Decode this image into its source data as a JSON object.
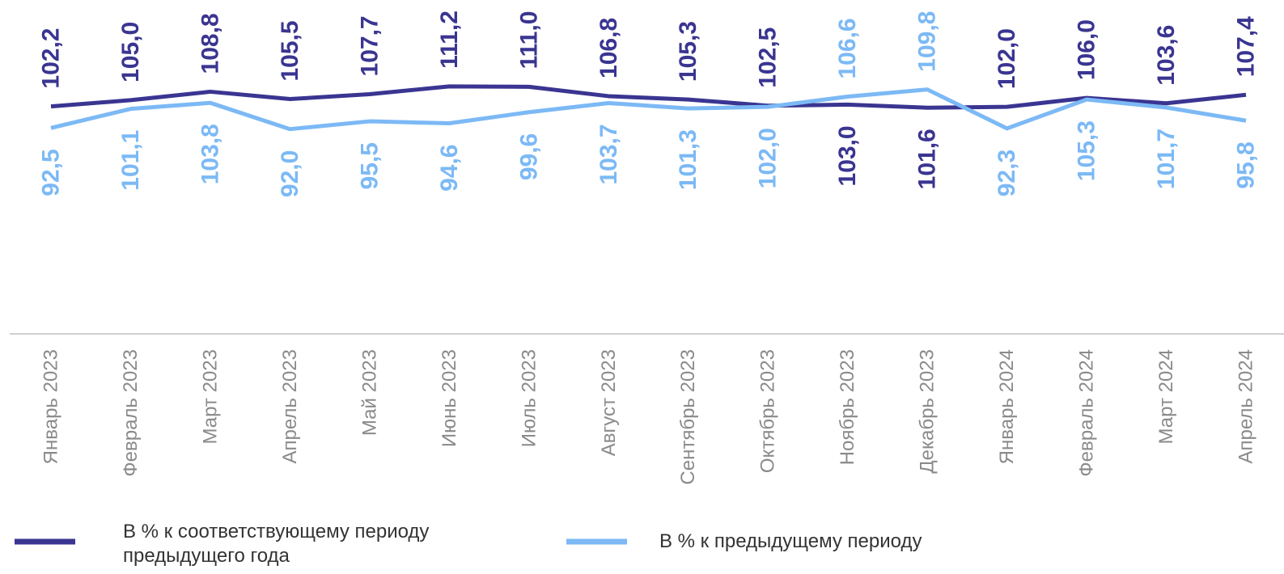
{
  "chart_data": {
    "type": "line",
    "categories": [
      "Январь 2023",
      "Февраль 2023",
      "Март 2023",
      "Апрель 2023",
      "Май 2023",
      "Июнь 2023",
      "Июль 2023",
      "Август 2023",
      "Сентябрь 2023",
      "Октябрь 2023",
      "Ноябрь 2023",
      "Декабрь 2023",
      "Январь 2024",
      "Февраль 2024",
      "Март 2024",
      "Апрель 2024"
    ],
    "series": [
      {
        "name": "В % к соответствующему периоду предыдущего года",
        "color": "#3a3591",
        "values": [
          102.2,
          105.0,
          108.8,
          105.5,
          107.7,
          111.2,
          111.0,
          106.8,
          105.3,
          102.5,
          103.0,
          101.6,
          102.0,
          106.0,
          103.6,
          107.4
        ],
        "value_labels": [
          "102,2",
          "105,0",
          "108,8",
          "105,5",
          "107,7",
          "111,2",
          "111,0",
          "106,8",
          "105,3",
          "102,5",
          "103,0",
          "101,6",
          "102,0",
          "106,0",
          "103,6",
          "107,4"
        ]
      },
      {
        "name": "В % к предыдущему периоду",
        "color": "#7cb9f5",
        "values": [
          92.5,
          101.1,
          103.8,
          92.0,
          95.5,
          94.6,
          99.6,
          103.7,
          101.3,
          102.0,
          106.6,
          109.8,
          92.3,
          105.3,
          101.7,
          95.8
        ],
        "value_labels": [
          "92,5",
          "101,1",
          "103,8",
          "92,0",
          "95,5",
          "94,6",
          "99,6",
          "103,7",
          "101,3",
          "102,0",
          "106,6",
          "109,8",
          "92,3",
          "105,3",
          "101,7",
          "95,8"
        ]
      }
    ],
    "ylim": [
      0,
      150
    ]
  }
}
